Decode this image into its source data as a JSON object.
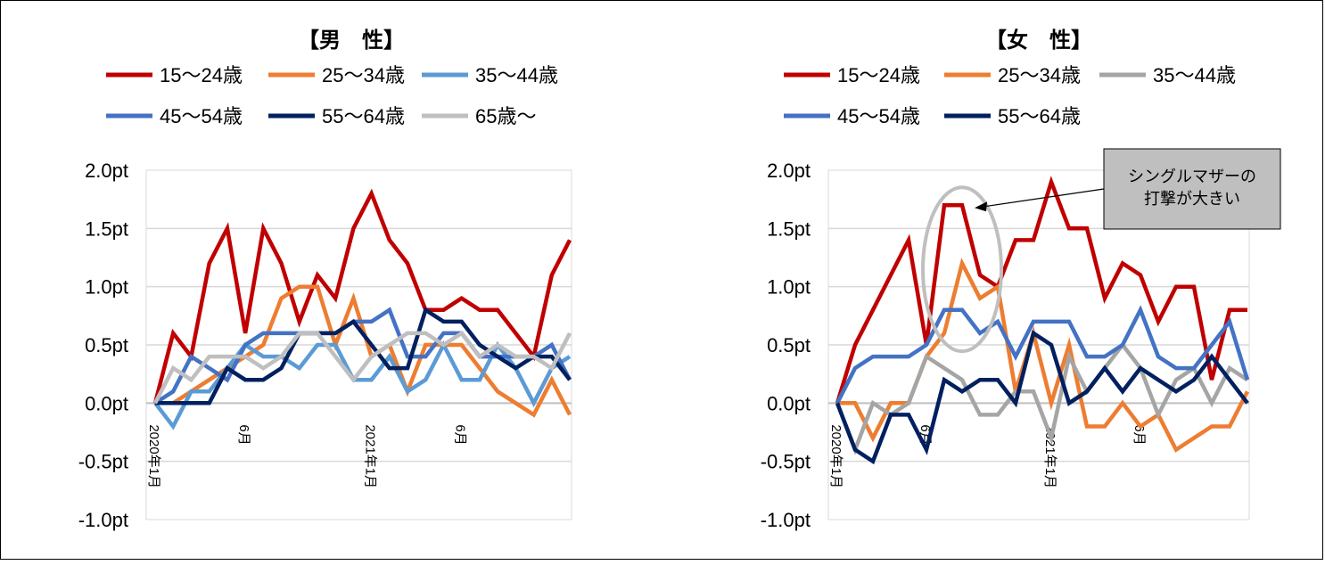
{
  "chart_data": [
    {
      "type": "line",
      "title": "【男　性】",
      "xlabel": "",
      "ylabel": "",
      "unit": "pt",
      "ylim": [
        -1.0,
        2.0
      ],
      "yticks": [
        "2.0pt",
        "1.5pt",
        "1.0pt",
        "0.5pt",
        "0.0pt",
        "-0.5pt",
        "-1.0pt"
      ],
      "ytick_values": [
        2.0,
        1.5,
        1.0,
        0.5,
        0.0,
        -0.5,
        -1.0
      ],
      "x_labels": [
        {
          "index": 0,
          "label": "2020年1月"
        },
        {
          "index": 5,
          "label": "6月"
        },
        {
          "index": 12,
          "label": "2021年1月"
        },
        {
          "index": 17,
          "label": "6月"
        }
      ],
      "grid": true,
      "legend_position": "top",
      "series": [
        {
          "name": "15〜24歳",
          "color": "#C00000",
          "values": [
            0.0,
            0.6,
            0.4,
            1.2,
            1.5,
            0.6,
            1.5,
            1.2,
            0.7,
            1.1,
            0.9,
            1.5,
            1.8,
            1.4,
            1.2,
            0.8,
            0.8,
            0.9,
            0.8,
            0.8,
            0.6,
            0.4,
            1.1,
            1.4
          ]
        },
        {
          "name": "25〜34歳",
          "color": "#ED7D31",
          "values": [
            0.0,
            0.0,
            0.1,
            0.2,
            0.3,
            0.4,
            0.5,
            0.9,
            1.0,
            1.0,
            0.5,
            0.9,
            0.4,
            0.5,
            0.1,
            0.5,
            0.5,
            0.5,
            0.3,
            0.1,
            0.0,
            -0.1,
            0.2,
            -0.1
          ]
        },
        {
          "name": "35〜44歳",
          "color": "#5B9BD5",
          "values": [
            0.0,
            -0.2,
            0.1,
            0.1,
            0.3,
            0.5,
            0.4,
            0.4,
            0.3,
            0.5,
            0.5,
            0.2,
            0.2,
            0.4,
            0.1,
            0.2,
            0.5,
            0.2,
            0.2,
            0.5,
            0.3,
            0.0,
            0.3,
            0.4
          ]
        },
        {
          "name": "45〜54歳",
          "color": "#4472C4",
          "values": [
            0.0,
            0.1,
            0.4,
            0.3,
            0.2,
            0.5,
            0.6,
            0.6,
            0.6,
            0.6,
            0.6,
            0.7,
            0.7,
            0.8,
            0.4,
            0.4,
            0.6,
            0.6,
            0.4,
            0.4,
            0.4,
            0.4,
            0.5,
            0.2
          ]
        },
        {
          "name": "55〜64歳",
          "color": "#002060",
          "values": [
            0.0,
            0.0,
            0.0,
            0.0,
            0.3,
            0.2,
            0.2,
            0.3,
            0.6,
            0.6,
            0.6,
            0.7,
            0.5,
            0.3,
            0.3,
            0.8,
            0.7,
            0.7,
            0.5,
            0.4,
            0.3,
            0.4,
            0.4,
            0.2
          ]
        },
        {
          "name": "65歳〜",
          "color": "#BFBFBF",
          "values": [
            0.0,
            0.3,
            0.2,
            0.4,
            0.4,
            0.4,
            0.3,
            0.4,
            0.6,
            0.6,
            0.4,
            0.2,
            0.4,
            0.5,
            0.6,
            0.6,
            0.5,
            0.6,
            0.4,
            0.5,
            0.4,
            0.4,
            0.3,
            0.6
          ]
        }
      ]
    },
    {
      "type": "line",
      "title": "【女　性】",
      "xlabel": "",
      "ylabel": "",
      "unit": "pt",
      "ylim": [
        -1.0,
        2.0
      ],
      "yticks": [
        "2.0pt",
        "1.5pt",
        "1.0pt",
        "0.5pt",
        "0.0pt",
        "-0.5pt",
        "-1.0pt"
      ],
      "ytick_values": [
        2.0,
        1.5,
        1.0,
        0.5,
        0.0,
        -0.5,
        -1.0
      ],
      "x_labels": [
        {
          "index": 0,
          "label": "2020年1月"
        },
        {
          "index": 5,
          "label": "6月"
        },
        {
          "index": 12,
          "label": "2021年1月"
        },
        {
          "index": 17,
          "label": "6月"
        }
      ],
      "grid": true,
      "legend_position": "top",
      "annotation": {
        "text_lines": [
          "シングルマザーの",
          "打撃が大きい"
        ],
        "target_index": 7,
        "target_value": 1.7
      },
      "series": [
        {
          "name": "15〜24歳",
          "color": "#C00000",
          "values": [
            0.0,
            0.5,
            0.8,
            1.1,
            1.4,
            0.5,
            1.7,
            1.7,
            1.1,
            1.0,
            1.4,
            1.4,
            1.9,
            1.5,
            1.5,
            0.9,
            1.2,
            1.1,
            0.7,
            1.0,
            1.0,
            0.2,
            0.8,
            0.8
          ]
        },
        {
          "name": "25〜34歳",
          "color": "#ED7D31",
          "values": [
            0.0,
            0.0,
            -0.3,
            0.0,
            0.0,
            0.4,
            0.6,
            1.2,
            0.9,
            1.0,
            0.1,
            0.6,
            0.0,
            0.5,
            -0.2,
            -0.2,
            0.0,
            -0.2,
            -0.1,
            -0.4,
            -0.3,
            -0.2,
            -0.2,
            0.1
          ]
        },
        {
          "name": "35〜44歳",
          "color": "#A5A5A5",
          "values": [
            0.0,
            -0.4,
            0.0,
            -0.1,
            0.0,
            0.4,
            0.3,
            0.2,
            -0.1,
            -0.1,
            0.1,
            0.1,
            -0.3,
            0.4,
            0.1,
            0.3,
            0.5,
            0.3,
            -0.1,
            0.2,
            0.3,
            0.0,
            0.3,
            0.2
          ]
        },
        {
          "name": "45〜54歳",
          "color": "#4472C4",
          "values": [
            0.0,
            0.3,
            0.4,
            0.4,
            0.4,
            0.5,
            0.8,
            0.8,
            0.6,
            0.7,
            0.4,
            0.7,
            0.7,
            0.7,
            0.4,
            0.4,
            0.5,
            0.8,
            0.4,
            0.3,
            0.3,
            0.5,
            0.7,
            0.2
          ]
        },
        {
          "name": "55〜64歳",
          "color": "#002060",
          "values": [
            0.0,
            -0.4,
            -0.5,
            -0.1,
            -0.1,
            -0.4,
            0.2,
            0.1,
            0.2,
            0.2,
            0.0,
            0.6,
            0.5,
            0.0,
            0.1,
            0.3,
            0.1,
            0.3,
            0.2,
            0.1,
            0.2,
            0.4,
            0.2,
            0.0
          ]
        }
      ]
    }
  ]
}
